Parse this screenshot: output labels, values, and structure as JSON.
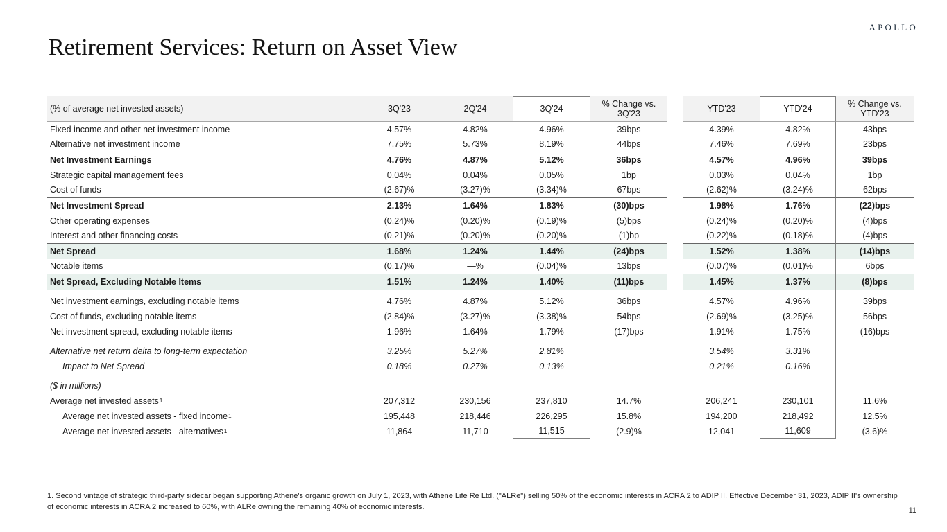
{
  "slide": {
    "logo": "APOLLO",
    "title": "Retirement Services: Return on Asset View",
    "page_number": "11",
    "footnote": "1. Second vintage of strategic third-party sidecar began supporting Athene's organic growth on July 1, 2023, with Athene Life Re Ltd. (\"ALRe\") selling 50% of the economic interests in ACRA 2 to ADIP II. Effective December 31, 2023, ADIP II's ownership of economic interests in ACRA 2 increased to 60%, with ALRe owning the remaining 40% of economic interests."
  },
  "colors": {
    "row_highlight": "#e8f1ed",
    "header_bg": "#f2f2f2",
    "rule_dark": "#666666",
    "rule_light": "#a6a6a6",
    "box_border": "#7f7f7f",
    "logo_text": "#1c2b3a"
  },
  "table": {
    "columns": [
      "(% of average net invested assets)",
      "3Q'23",
      "2Q'24",
      "3Q'24",
      "% Change vs. 3Q'23",
      "YTD'23",
      "YTD'24",
      "% Change vs. YTD'23"
    ],
    "rows": [
      {
        "label": "Fixed income and other net investment income",
        "values": [
          "4.57%",
          "4.82%",
          "4.96%",
          "39bps",
          "4.39%",
          "4.82%",
          "43bps"
        ]
      },
      {
        "label": "Alternative net investment income",
        "rule": true,
        "values": [
          "7.75%",
          "5.73%",
          "8.19%",
          "44bps",
          "7.46%",
          "7.69%",
          "23bps"
        ]
      },
      {
        "label": "Net Investment Earnings",
        "bold": true,
        "values": [
          "4.76%",
          "4.87%",
          "5.12%",
          "36bps",
          "4.57%",
          "4.96%",
          "39bps"
        ]
      },
      {
        "label": "Strategic capital management fees",
        "values": [
          "0.04%",
          "0.04%",
          "0.05%",
          "1bp",
          "0.03%",
          "0.04%",
          "1bp"
        ]
      },
      {
        "label": "Cost of funds",
        "rule": true,
        "values": [
          "(2.67)%",
          "(3.27)%",
          "(3.34)%",
          "67bps",
          "(2.62)%",
          "(3.24)%",
          "62bps"
        ]
      },
      {
        "label": "Net Investment Spread",
        "bold": true,
        "values": [
          "2.13%",
          "1.64%",
          "1.83%",
          "(30)bps",
          "1.98%",
          "1.76%",
          "(22)bps"
        ]
      },
      {
        "label": "Other operating expenses",
        "values": [
          "(0.24)%",
          "(0.20)%",
          "(0.19)%",
          "(5)bps",
          "(0.24)%",
          "(0.20)%",
          "(4)bps"
        ]
      },
      {
        "label": "Interest and other financing costs",
        "rule": true,
        "values": [
          "(0.21)%",
          "(0.20)%",
          "(0.20)%",
          "(1)bp",
          "(0.22)%",
          "(0.18)%",
          "(4)bps"
        ]
      },
      {
        "label": "Net Spread",
        "bold": true,
        "green": true,
        "values": [
          "1.68%",
          "1.24%",
          "1.44%",
          "(24)bps",
          "1.52%",
          "1.38%",
          "(14)bps"
        ]
      },
      {
        "label": "Notable items",
        "rule": true,
        "values": [
          "(0.17)%",
          "—%",
          "(0.04)%",
          "13bps",
          "(0.07)%",
          "(0.01)%",
          "6bps"
        ]
      },
      {
        "label": "Net Spread, Excluding Notable Items",
        "bold": true,
        "green": true,
        "values": [
          "1.51%",
          "1.24%",
          "1.40%",
          "(11)bps",
          "1.45%",
          "1.37%",
          "(8)bps"
        ]
      },
      {
        "label": "Net investment earnings, excluding notable items",
        "spacer_before": true,
        "values": [
          "4.76%",
          "4.87%",
          "5.12%",
          "36bps",
          "4.57%",
          "4.96%",
          "39bps"
        ]
      },
      {
        "label": "Cost of funds, excluding notable items",
        "values": [
          "(2.84)%",
          "(3.27)%",
          "(3.38)%",
          "54bps",
          "(2.69)%",
          "(3.25)%",
          "56bps"
        ]
      },
      {
        "label": "Net investment spread, excluding notable items",
        "values": [
          "1.96%",
          "1.64%",
          "1.79%",
          "(17)bps",
          "1.91%",
          "1.75%",
          "(16)bps"
        ]
      },
      {
        "label": "Alternative net return delta to long-term expectation",
        "italic": true,
        "spacer_before": true,
        "values": [
          "3.25%",
          "5.27%",
          "2.81%",
          "",
          "3.54%",
          "3.31%",
          ""
        ]
      },
      {
        "label": "Impact to Net Spread",
        "italic": true,
        "indent": true,
        "values": [
          "0.18%",
          "0.27%",
          "0.13%",
          "",
          "0.21%",
          "0.16%",
          ""
        ]
      },
      {
        "label": "($ in millions)",
        "italic": true,
        "spacer_before": true,
        "values": [
          "",
          "",
          "",
          "",
          "",
          "",
          ""
        ]
      },
      {
        "label": "Average net invested assets",
        "sup": "1",
        "values": [
          "207,312",
          "230,156",
          "237,810",
          "14.7%",
          "206,241",
          "230,101",
          "11.6%"
        ]
      },
      {
        "label": "Average net invested assets - fixed income",
        "sup": "1",
        "indent": true,
        "values": [
          "195,448",
          "218,446",
          "226,295",
          "15.8%",
          "194,200",
          "218,492",
          "12.5%"
        ]
      },
      {
        "label": "Average net invested assets - alternatives",
        "sup": "1",
        "indent": true,
        "values": [
          "11,864",
          "11,710",
          "11,515",
          "(2.9)%",
          "12,041",
          "11,609",
          "(3.6)%"
        ]
      }
    ]
  }
}
